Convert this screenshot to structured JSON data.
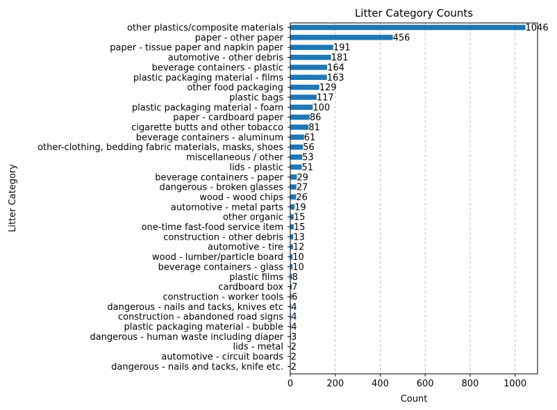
{
  "chart_data": {
    "type": "bar",
    "orientation": "horizontal",
    "title": "Litter Category Counts",
    "xlabel": "Count",
    "ylabel": "Litter Category",
    "xlim": [
      0,
      1100
    ],
    "xticks": [
      0,
      200,
      400,
      600,
      800,
      1000
    ],
    "grid": "x-dashed",
    "bar_color": "#1f77b4",
    "categories": [
      "other plastics/composite materials",
      "paper - other paper",
      "paper - tissue paper and napkin paper",
      "automotive - other debris",
      "beverage containers - plastic",
      "plastic packaging material - films",
      "other food packaging",
      "plastic bags",
      "plastic packaging material - foam",
      "paper - cardboard paper",
      "cigarette butts and other tobacco",
      "beverage containers - aluminum",
      "other-clothing, bedding fabric materials, masks, shoes",
      "miscellaneous / other",
      "lids - plastic",
      "beverage containers - paper",
      "dangerous - broken glasses",
      "wood - wood chips",
      "automotive - metal parts",
      "other organic",
      "one-time fast-food service item",
      "construction - other debris",
      "automotive - tire",
      "wood - lumber/particle board",
      "beverage containers - glass",
      "plastic films",
      "cardboard box",
      "construction - worker tools",
      "dangerous - nails and tacks, knives etc",
      "construction - abandoned road signs",
      "plastic packaging material - bubble",
      "dangerous - human waste including diaper",
      "lids - metal",
      "automotive - circuit boards",
      "dangerous - nails and tacks, knife etc."
    ],
    "values": [
      1046,
      456,
      191,
      181,
      164,
      163,
      129,
      117,
      100,
      86,
      81,
      61,
      56,
      53,
      51,
      29,
      27,
      26,
      19,
      15,
      15,
      13,
      12,
      10,
      10,
      8,
      7,
      6,
      4,
      4,
      4,
      3,
      2,
      2,
      2
    ]
  }
}
